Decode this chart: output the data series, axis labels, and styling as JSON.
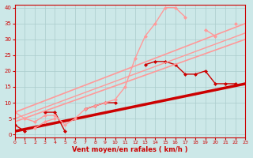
{
  "xlabel": "Vent moyen/en rafales ( km/h )",
  "xlim": [
    0,
    23
  ],
  "ylim": [
    -1,
    41
  ],
  "yticks": [
    0,
    5,
    10,
    15,
    20,
    25,
    30,
    35,
    40
  ],
  "xticks": [
    0,
    1,
    2,
    3,
    4,
    5,
    6,
    7,
    8,
    9,
    10,
    11,
    12,
    13,
    14,
    15,
    16,
    17,
    18,
    19,
    20,
    21,
    22,
    23
  ],
  "bg_color": "#cce8e8",
  "grid_color": "#aacccc",
  "series": [
    {
      "x": [
        0,
        1,
        2,
        3,
        4,
        5,
        6,
        7,
        8,
        9,
        10,
        11,
        12,
        13,
        14,
        15,
        16,
        17,
        18,
        19,
        20,
        21,
        22,
        23
      ],
      "y": [
        3,
        1,
        null,
        7,
        7,
        1,
        null,
        8,
        9,
        10,
        10,
        null,
        null,
        22,
        23,
        23,
        22,
        19,
        19,
        20,
        16,
        16,
        16,
        null
      ],
      "color": "#cc0000",
      "lw": 1.0,
      "marker": "D",
      "ms": 2.0
    },
    {
      "x": [
        0,
        23
      ],
      "y": [
        1,
        16
      ],
      "color": "#cc0000",
      "lw": 2.5,
      "marker": null,
      "ms": 0
    },
    {
      "x": [
        0,
        1,
        2,
        3,
        4,
        5,
        6,
        7,
        8,
        9,
        10,
        11,
        12,
        13,
        14,
        15,
        16,
        17,
        18,
        19,
        20,
        21,
        22,
        23
      ],
      "y": [
        7,
        5,
        4,
        6,
        6,
        3,
        5,
        8,
        9,
        10,
        11,
        15,
        24,
        31,
        35,
        40,
        40,
        37,
        null,
        33,
        31,
        null,
        35,
        null
      ],
      "color": "#ff9999",
      "lw": 1.0,
      "marker": "D",
      "ms": 2.0
    },
    {
      "x": [
        2,
        3,
        4
      ],
      "y": [
        2,
        4,
        5
      ],
      "color": "#ff9999",
      "lw": 1.0,
      "marker": "D",
      "ms": 2.0
    },
    {
      "x": [
        0,
        23
      ],
      "y": [
        7,
        35
      ],
      "color": "#ff9999",
      "lw": 1.2,
      "marker": null,
      "ms": 0
    },
    {
      "x": [
        0,
        23
      ],
      "y": [
        4,
        30
      ],
      "color": "#ff9999",
      "lw": 1.2,
      "marker": null,
      "ms": 0
    },
    {
      "x": [
        0,
        23
      ],
      "y": [
        5,
        32
      ],
      "color": "#ff9999",
      "lw": 1.0,
      "marker": null,
      "ms": 0
    }
  ]
}
